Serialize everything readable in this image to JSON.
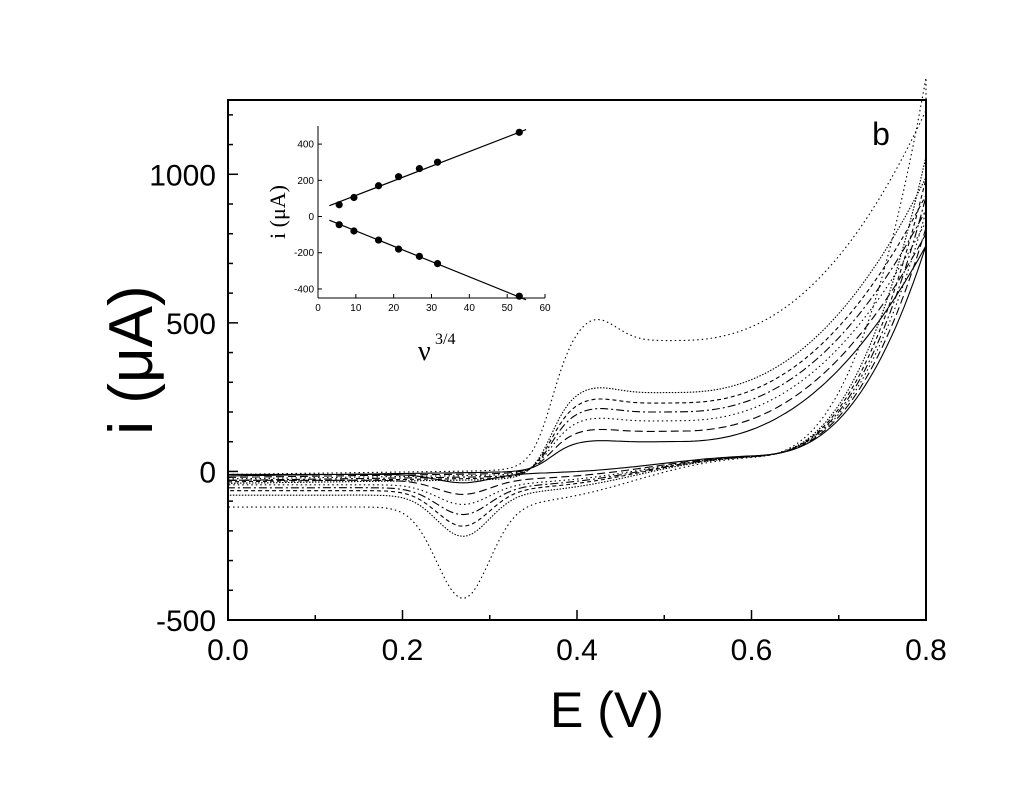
{
  "chart_data": [
    {
      "type": "line",
      "panel_letter": "b",
      "xlabel": "E (V)",
      "ylabel": "i (μA)",
      "xlim": [
        0.0,
        0.8
      ],
      "ylim": [
        -500,
        1250
      ],
      "x_ticks": [
        0.0,
        0.2,
        0.4,
        0.6,
        0.8
      ],
      "x_tick_labels": [
        "0.0",
        "0.2",
        "0.4",
        "0.6",
        "0.8"
      ],
      "y_ticks": [
        -500,
        0,
        500,
        1000
      ],
      "y_tick_labels": [
        "-500",
        "0",
        "500",
        "1000"
      ],
      "grid": false,
      "legend": "none",
      "series": [
        {
          "style": "solid",
          "plateau": 95,
          "peak_c": -40,
          "end_c": -10,
          "start_a": -15,
          "end_a": 760
        },
        {
          "style": "dashed",
          "plateau": 135,
          "peak_c": -80,
          "end_c": -30,
          "start_a": -20,
          "end_a": 800
        },
        {
          "style": "dotted",
          "plateau": 175,
          "peak_c": -115,
          "end_c": -45,
          "start_a": -25,
          "end_a": 840
        },
        {
          "style": "dashdot",
          "plateau": 210,
          "peak_c": -150,
          "end_c": -55,
          "start_a": -30,
          "end_a": 880
        },
        {
          "style": "shortdash",
          "plateau": 245,
          "peak_c": -190,
          "end_c": -65,
          "start_a": -35,
          "end_a": 930
        },
        {
          "style": "densedot",
          "plateau": 285,
          "peak_c": -225,
          "end_c": -80,
          "start_a": -40,
          "end_a": 990
        },
        {
          "style": "dotted",
          "plateau": 430,
          "peak_c": -440,
          "end_c": -120,
          "start_a": -10,
          "end_a": 1215
        }
      ]
    },
    {
      "type": "scatter",
      "xlabel": "ν",
      "xlabel_superscript": "3/4",
      "ylabel": "i (μA)",
      "xlim": [
        0,
        60
      ],
      "ylim": [
        -450,
        500
      ],
      "x_ticks": [
        0,
        10,
        20,
        30,
        40,
        50,
        60
      ],
      "x_tick_labels": [
        "0",
        "10",
        "20",
        "30",
        "40",
        "50",
        "60"
      ],
      "y_ticks": [
        -400,
        -200,
        0,
        200,
        400
      ],
      "y_tick_labels": [
        "-400",
        "-200",
        "0",
        "200",
        "400"
      ],
      "series": [
        {
          "x": [
            5.6,
            9.5,
            16,
            21.3,
            26.8,
            31.6,
            53.2
          ],
          "y": [
            65,
            105,
            170,
            220,
            265,
            300,
            465
          ]
        },
        {
          "x": [
            5.6,
            9.5,
            16,
            21.3,
            26.8,
            31.6,
            53.2
          ],
          "y": [
            -45,
            -80,
            -130,
            -180,
            -220,
            -260,
            -440
          ]
        }
      ],
      "fit_lines": [
        {
          "x": [
            3,
            55
          ],
          "y": [
            60,
            480
          ]
        },
        {
          "x": [
            3,
            55
          ],
          "y": [
            -20,
            -460
          ]
        }
      ]
    }
  ]
}
